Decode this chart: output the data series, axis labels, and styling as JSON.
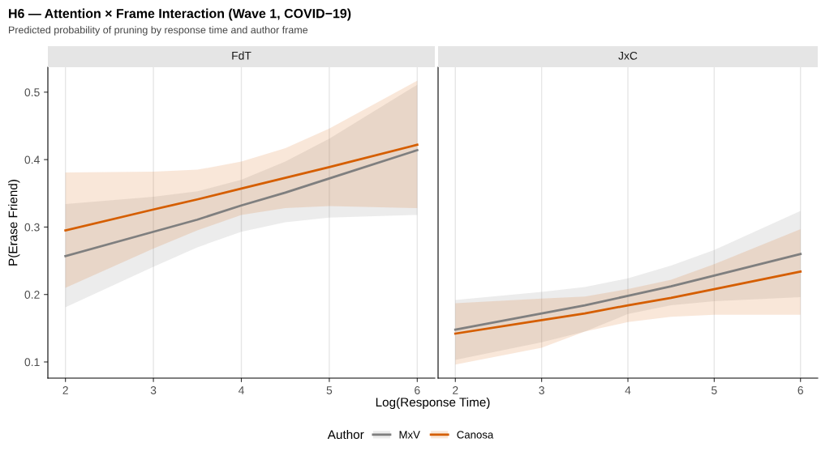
{
  "chart_data": [
    {
      "type": "other",
      "title": "H6 — Attention × Frame Interaction (Wave 1, COVID−19)",
      "subtitle": "Predicted probability of pruning by response time and author frame"
    },
    {
      "type": "line",
      "title": "FdT",
      "ylabel": "P(Erase Friend)",
      "xlabel": "Log(Response Time)",
      "legend_title": "Author",
      "legend": "bottom",
      "grid": "x",
      "x": [
        2,
        3,
        3.5,
        4,
        4.5,
        5,
        6
      ],
      "xlim": [
        1.8,
        6.2
      ],
      "xticks": [
        2,
        3,
        4,
        5,
        6
      ],
      "ylim": [
        0.076,
        0.537
      ],
      "yticks": [
        0.1,
        0.2,
        0.3,
        0.4,
        0.5
      ],
      "series": [
        {
          "name": "MxV",
          "color": "#7f7f7f",
          "values": [
            0.257,
            0.293,
            0.311,
            0.332,
            0.351,
            0.372,
            0.414
          ],
          "lower": [
            0.181,
            0.241,
            0.27,
            0.293,
            0.307,
            0.314,
            0.318
          ],
          "upper": [
            0.334,
            0.345,
            0.353,
            0.37,
            0.397,
            0.431,
            0.511
          ]
        },
        {
          "name": "Canosa",
          "color": "#d55e00",
          "values": [
            0.295,
            0.326,
            0.341,
            0.357,
            0.373,
            0.389,
            0.422
          ],
          "lower": [
            0.21,
            0.268,
            0.295,
            0.318,
            0.328,
            0.331,
            0.328
          ],
          "upper": [
            0.381,
            0.382,
            0.385,
            0.397,
            0.417,
            0.446,
            0.517
          ]
        }
      ]
    },
    {
      "type": "line",
      "title": "JxC",
      "grid": "x",
      "tick_labels": "x",
      "x": [
        2,
        3,
        3.5,
        4,
        4.5,
        5,
        6
      ],
      "xlim": [
        1.8,
        6.2
      ],
      "xticks": [
        2,
        3,
        4,
        5,
        6
      ],
      "ylim": [
        0.076,
        0.537
      ],
      "yticks": [
        0.1,
        0.2,
        0.3,
        0.4,
        0.5
      ],
      "series": [
        {
          "color": "#7f7f7f",
          "values": [
            0.148,
            0.172,
            0.184,
            0.198,
            0.212,
            0.228,
            0.26
          ],
          "lower": [
            0.103,
            0.129,
            0.145,
            0.171,
            0.184,
            0.19,
            0.196
          ],
          "upper": [
            0.192,
            0.204,
            0.211,
            0.224,
            0.243,
            0.266,
            0.324
          ]
        },
        {
          "color": "#d55e00",
          "values": [
            0.142,
            0.162,
            0.172,
            0.184,
            0.195,
            0.208,
            0.234
          ],
          "lower": [
            0.096,
            0.121,
            0.145,
            0.159,
            0.167,
            0.17,
            0.17
          ],
          "upper": [
            0.187,
            0.194,
            0.197,
            0.208,
            0.222,
            0.245,
            0.297
          ]
        }
      ]
    }
  ]
}
